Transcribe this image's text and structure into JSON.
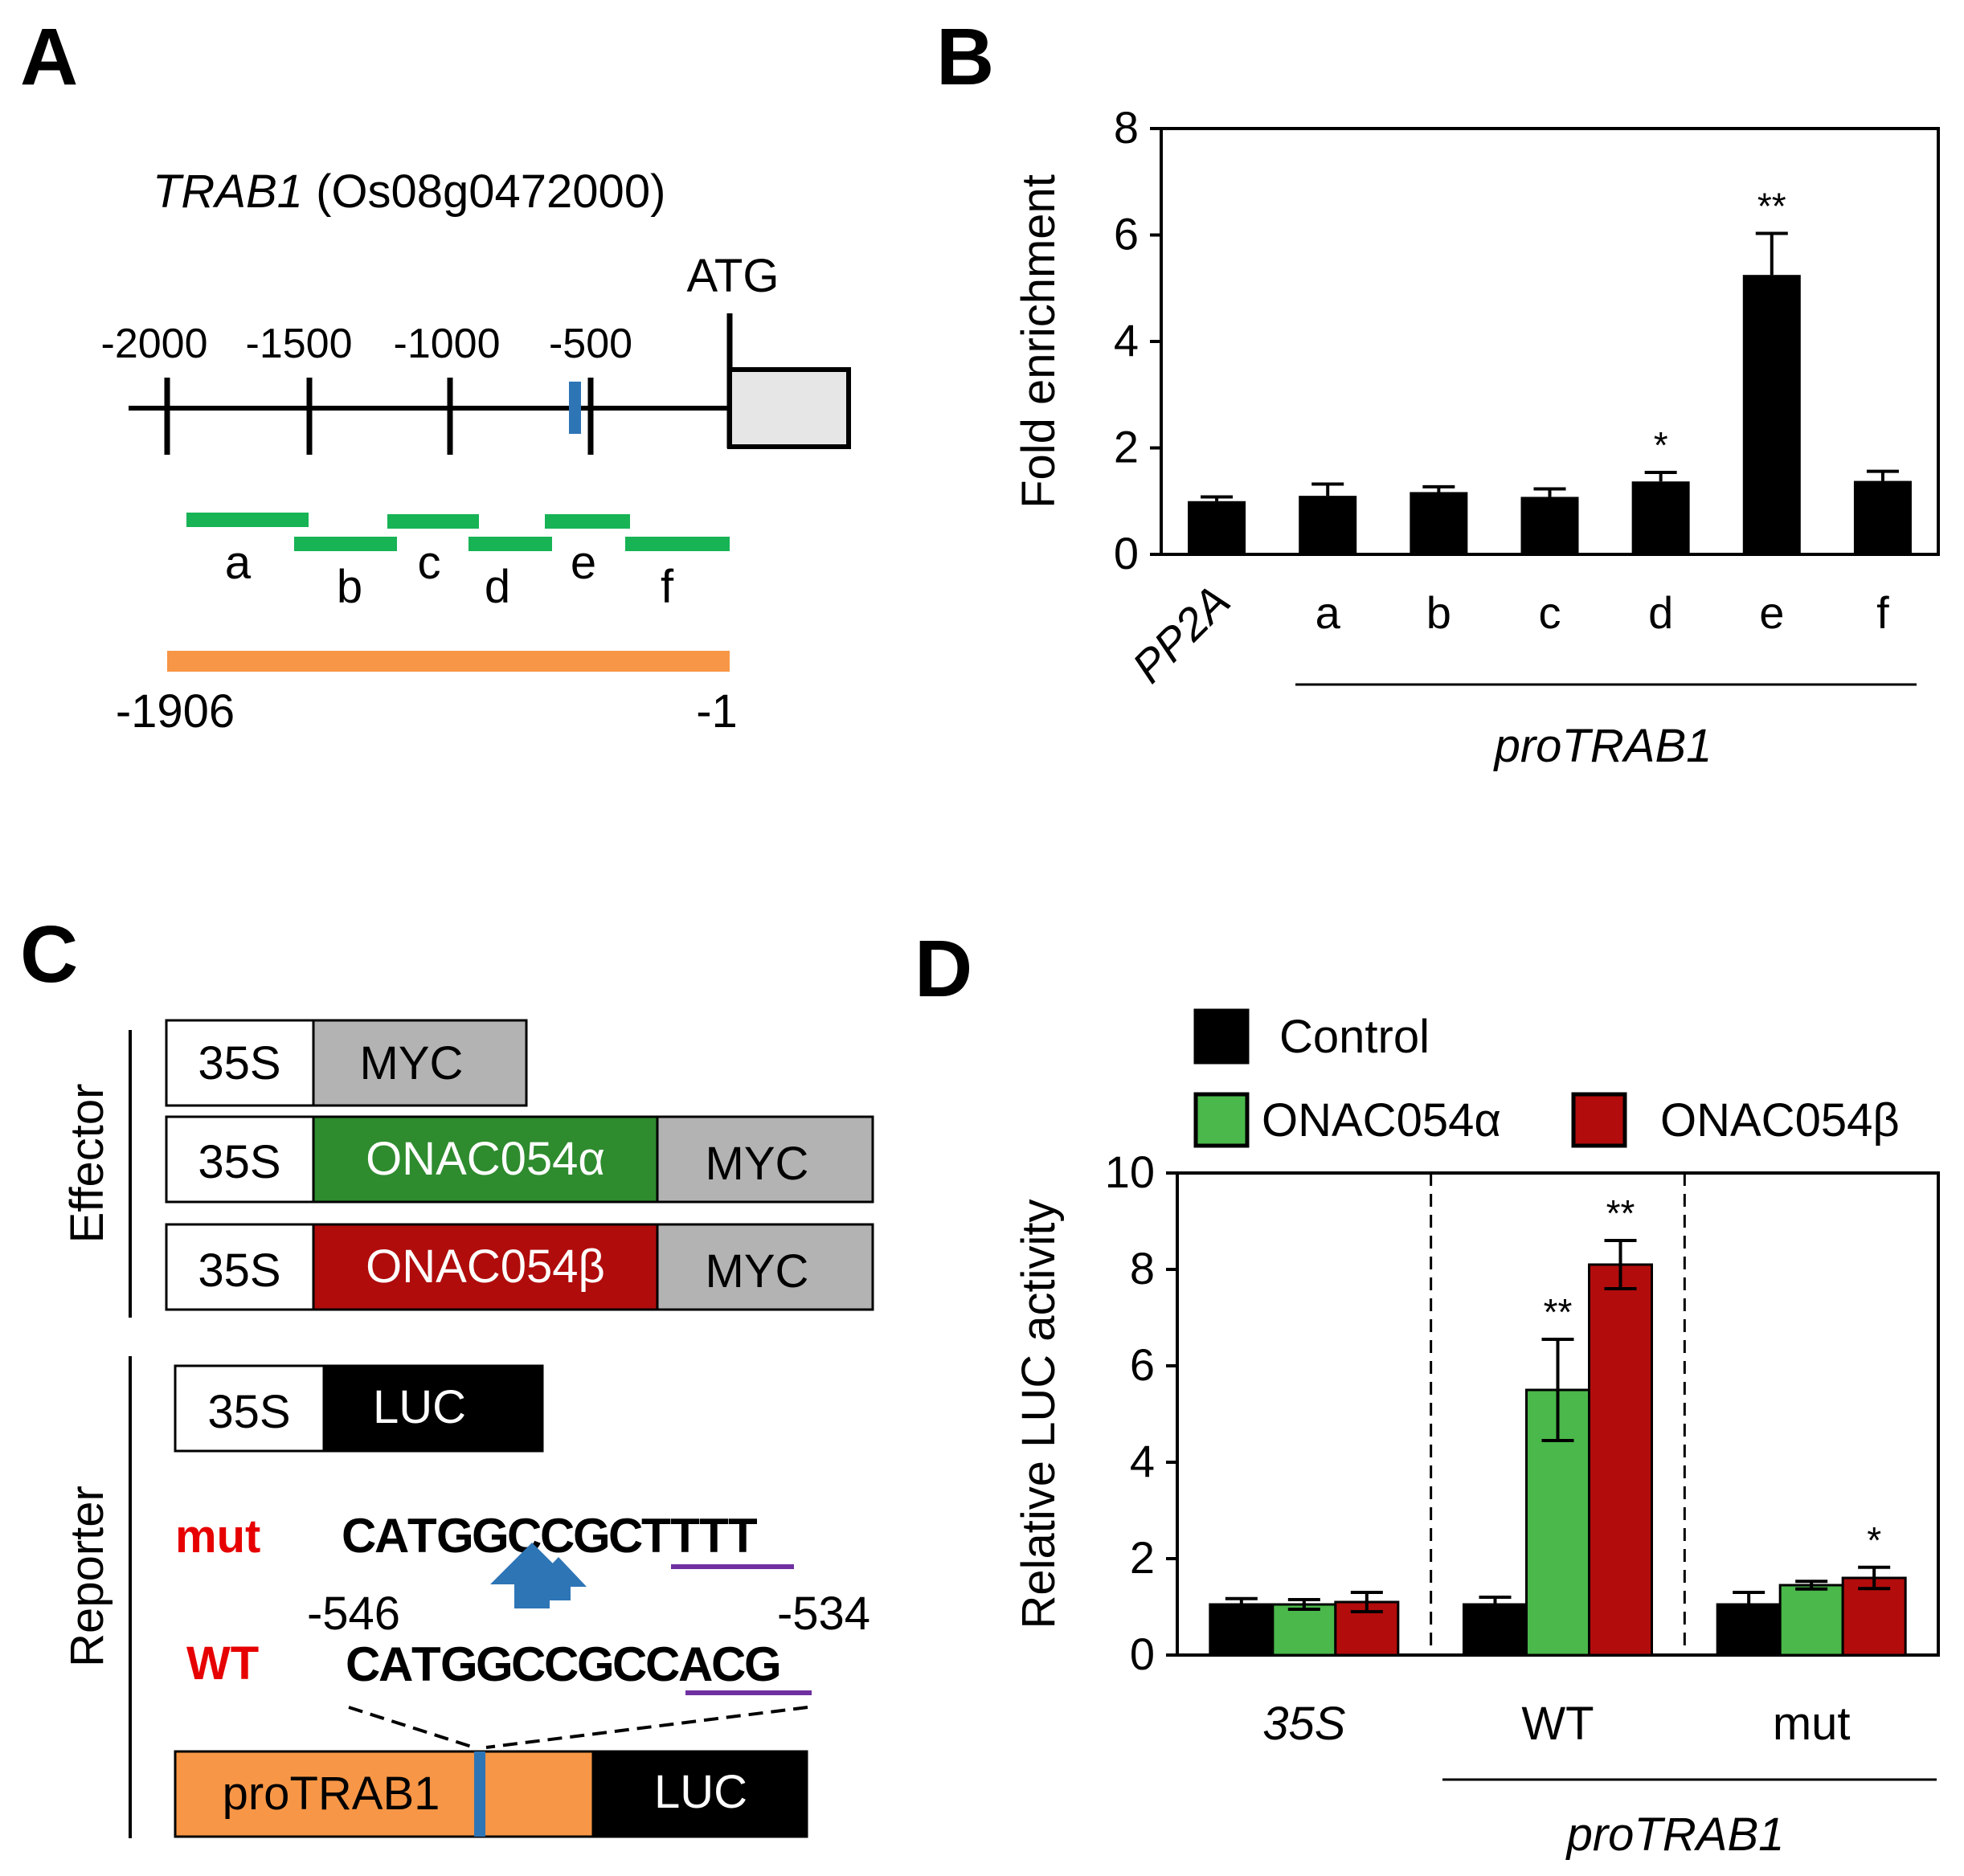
{
  "panels": {
    "A": {
      "letter": "A",
      "gene_name": "TRAB1",
      "gene_id": "(Os08g0472000)",
      "atg": "ATG",
      "positions": [
        "-2000",
        "-1500",
        "-1000",
        "-500"
      ],
      "fragments": [
        "a",
        "b",
        "c",
        "d",
        "e",
        "f"
      ],
      "range_start": "-1906",
      "range_end": "-1",
      "colors": {
        "fragment": "#17b355",
        "promoter": "#f79646",
        "site": "#2e75b6",
        "exon": "#e6e6e6"
      }
    },
    "B": {
      "letter": "B"
    },
    "C": {
      "letter": "C",
      "effector_label": "Effector",
      "reporter_label": "Reporter",
      "effectors": [
        {
          "promoter": "35S",
          "parts": [
            "MYC"
          ]
        },
        {
          "promoter": "35S",
          "parts": [
            "ONAC054α",
            "MYC"
          ]
        },
        {
          "promoter": "35S",
          "parts": [
            "ONAC054β",
            "MYC"
          ]
        }
      ],
      "reporter_control": {
        "promoter": "35S",
        "gene": "LUC"
      },
      "mut_label": "mut",
      "wt_label": "WT",
      "mut_seq": [
        "C",
        "A",
        "T",
        "G",
        "G",
        "C",
        "C",
        "G",
        "C",
        "T",
        "T",
        "T",
        "T"
      ],
      "wt_seq": [
        "C",
        "A",
        "T",
        "G",
        "G",
        "C",
        "C",
        "G",
        "C",
        "C",
        "A",
        "C",
        "G"
      ],
      "pos_start": "-546",
      "pos_end": "-534",
      "construct": {
        "promoter": "proTRAB1",
        "gene": "LUC"
      },
      "colors": {
        "green_box": "#2e8b2e",
        "red_box": "#b00c0c",
        "grey_box": "#b3b3b3",
        "orange": "#f79646",
        "label_red": "#e60000",
        "underline": "#7030a0",
        "arrow": "#2e75b6"
      }
    },
    "D": {
      "letter": "D"
    }
  },
  "chart_data": [
    {
      "type": "bar",
      "panel": "B",
      "categories": [
        "PP2A",
        "a",
        "b",
        "c",
        "d",
        "e",
        "f"
      ],
      "values": [
        1.0,
        1.1,
        1.17,
        1.08,
        1.37,
        5.25,
        1.38
      ],
      "errors": [
        0.08,
        0.22,
        0.1,
        0.15,
        0.17,
        0.78,
        0.18
      ],
      "significance": [
        "",
        "",
        "",
        "",
        "*",
        "**",
        ""
      ],
      "ylabel": "Fold enrichment",
      "ylim": [
        0,
        8
      ],
      "yticks": [
        "0",
        "2",
        "4",
        "6",
        "8"
      ],
      "group_label": "proTRAB1",
      "bar_color": "#000000"
    },
    {
      "type": "bar",
      "panel": "D",
      "categories": [
        "35S",
        "WT",
        "mut"
      ],
      "series": [
        {
          "name": "Control",
          "color": "#000000",
          "values": [
            1.05,
            1.05,
            1.05
          ],
          "errors": [
            0.12,
            0.15,
            0.25
          ],
          "significance": [
            "",
            "",
            ""
          ]
        },
        {
          "name": "ONAC054α",
          "color": "#4ab84a",
          "values": [
            1.05,
            5.5,
            1.45
          ],
          "errors": [
            0.1,
            1.05,
            0.08
          ],
          "significance": [
            "",
            "**",
            ""
          ]
        },
        {
          "name": "ONAC054β",
          "color": "#b30c0c",
          "values": [
            1.1,
            8.1,
            1.6
          ],
          "errors": [
            0.2,
            0.5,
            0.22
          ],
          "significance": [
            "",
            "**",
            "*"
          ]
        }
      ],
      "ylabel": "Relative LUC activity",
      "ylim": [
        0,
        10
      ],
      "yticks": [
        "0",
        "2",
        "4",
        "6",
        "8",
        "10"
      ],
      "group_label": "proTRAB1",
      "legend": [
        "Control",
        "ONAC054α",
        "ONAC054β"
      ]
    }
  ]
}
